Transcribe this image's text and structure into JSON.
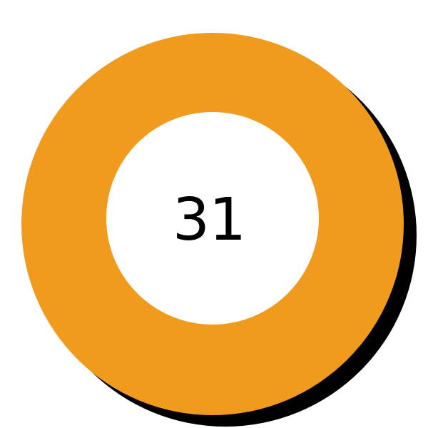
{
  "badge": {
    "number": "31",
    "ring_color": "#f09b1d",
    "center_color": "#ffffff",
    "shadow_color": "#000000",
    "text_color": "#000000"
  }
}
